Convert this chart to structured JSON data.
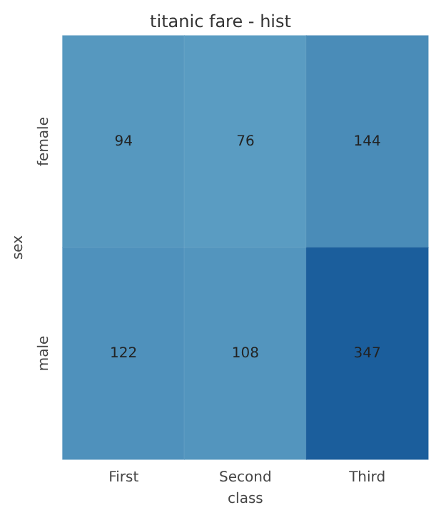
{
  "chart_data": {
    "type": "heatmap",
    "title": "titanic fare - hist",
    "xlabel": "class",
    "ylabel": "sex",
    "categories": [
      "First",
      "Second",
      "Third"
    ],
    "y_categories": [
      "female",
      "male"
    ],
    "cells": [
      [
        94,
        76,
        144
      ],
      [
        122,
        108,
        347
      ]
    ],
    "colors": [
      "#5a9cc2",
      "#1b5e9c"
    ],
    "data_labels": true
  }
}
